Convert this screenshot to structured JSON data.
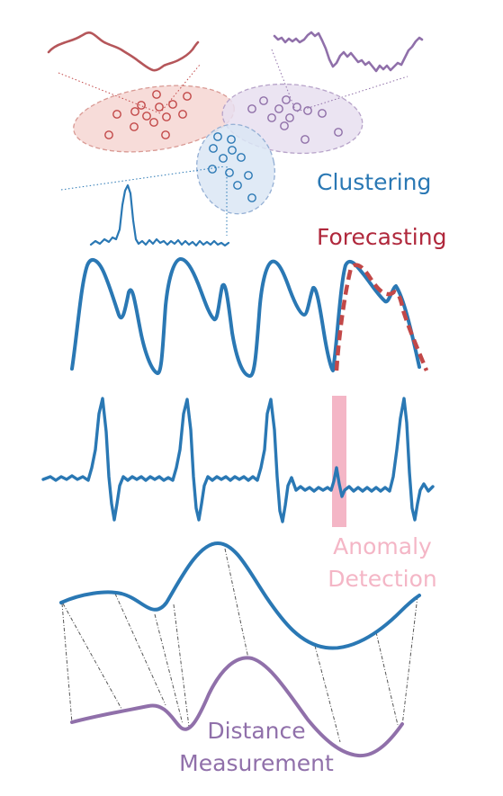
{
  "labels": {
    "clustering": "Clustering",
    "forecasting": "Forecasting",
    "anomaly_line1": "Anomaly",
    "anomaly_line2": "Detection",
    "distance_line1": "Distance",
    "distance_line2": "Measurement"
  },
  "colors": {
    "blue": "#2a78b4",
    "red": "#c24848",
    "purple": "#9a78b0",
    "pink": "#f4b6c6",
    "dark_red": "#b0283c",
    "gray": "#555555"
  }
}
